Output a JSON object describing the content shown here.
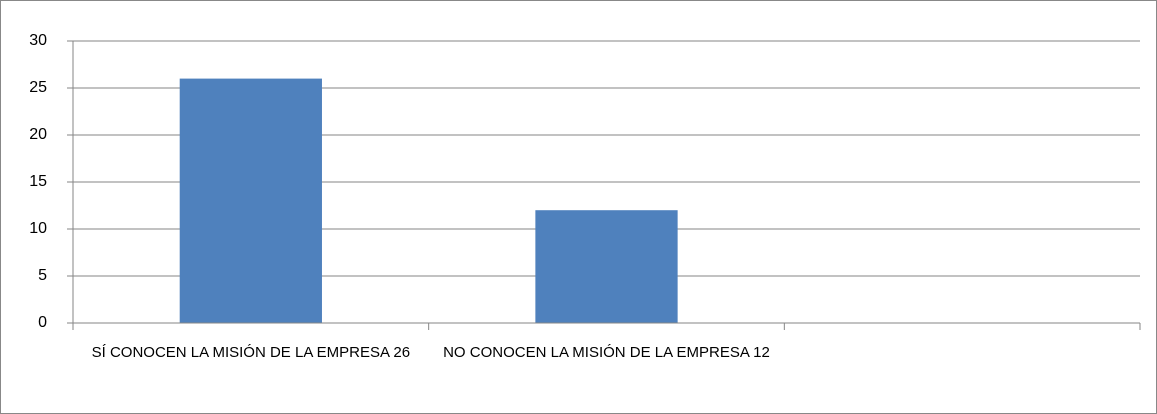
{
  "chart_data": {
    "type": "bar",
    "categories": [
      "SÍ CONOCEN LA MISIÓN DE LA EMPRESA 26",
      "NO CONOCEN LA MISIÓN DE LA EMPRESA 12",
      null
    ],
    "values": [
      26,
      12,
      null
    ],
    "color": "#4f81bd",
    "ylim": [
      0,
      30
    ],
    "yticks": [
      0,
      5,
      10,
      15,
      20,
      25,
      30
    ],
    "grid": true
  }
}
